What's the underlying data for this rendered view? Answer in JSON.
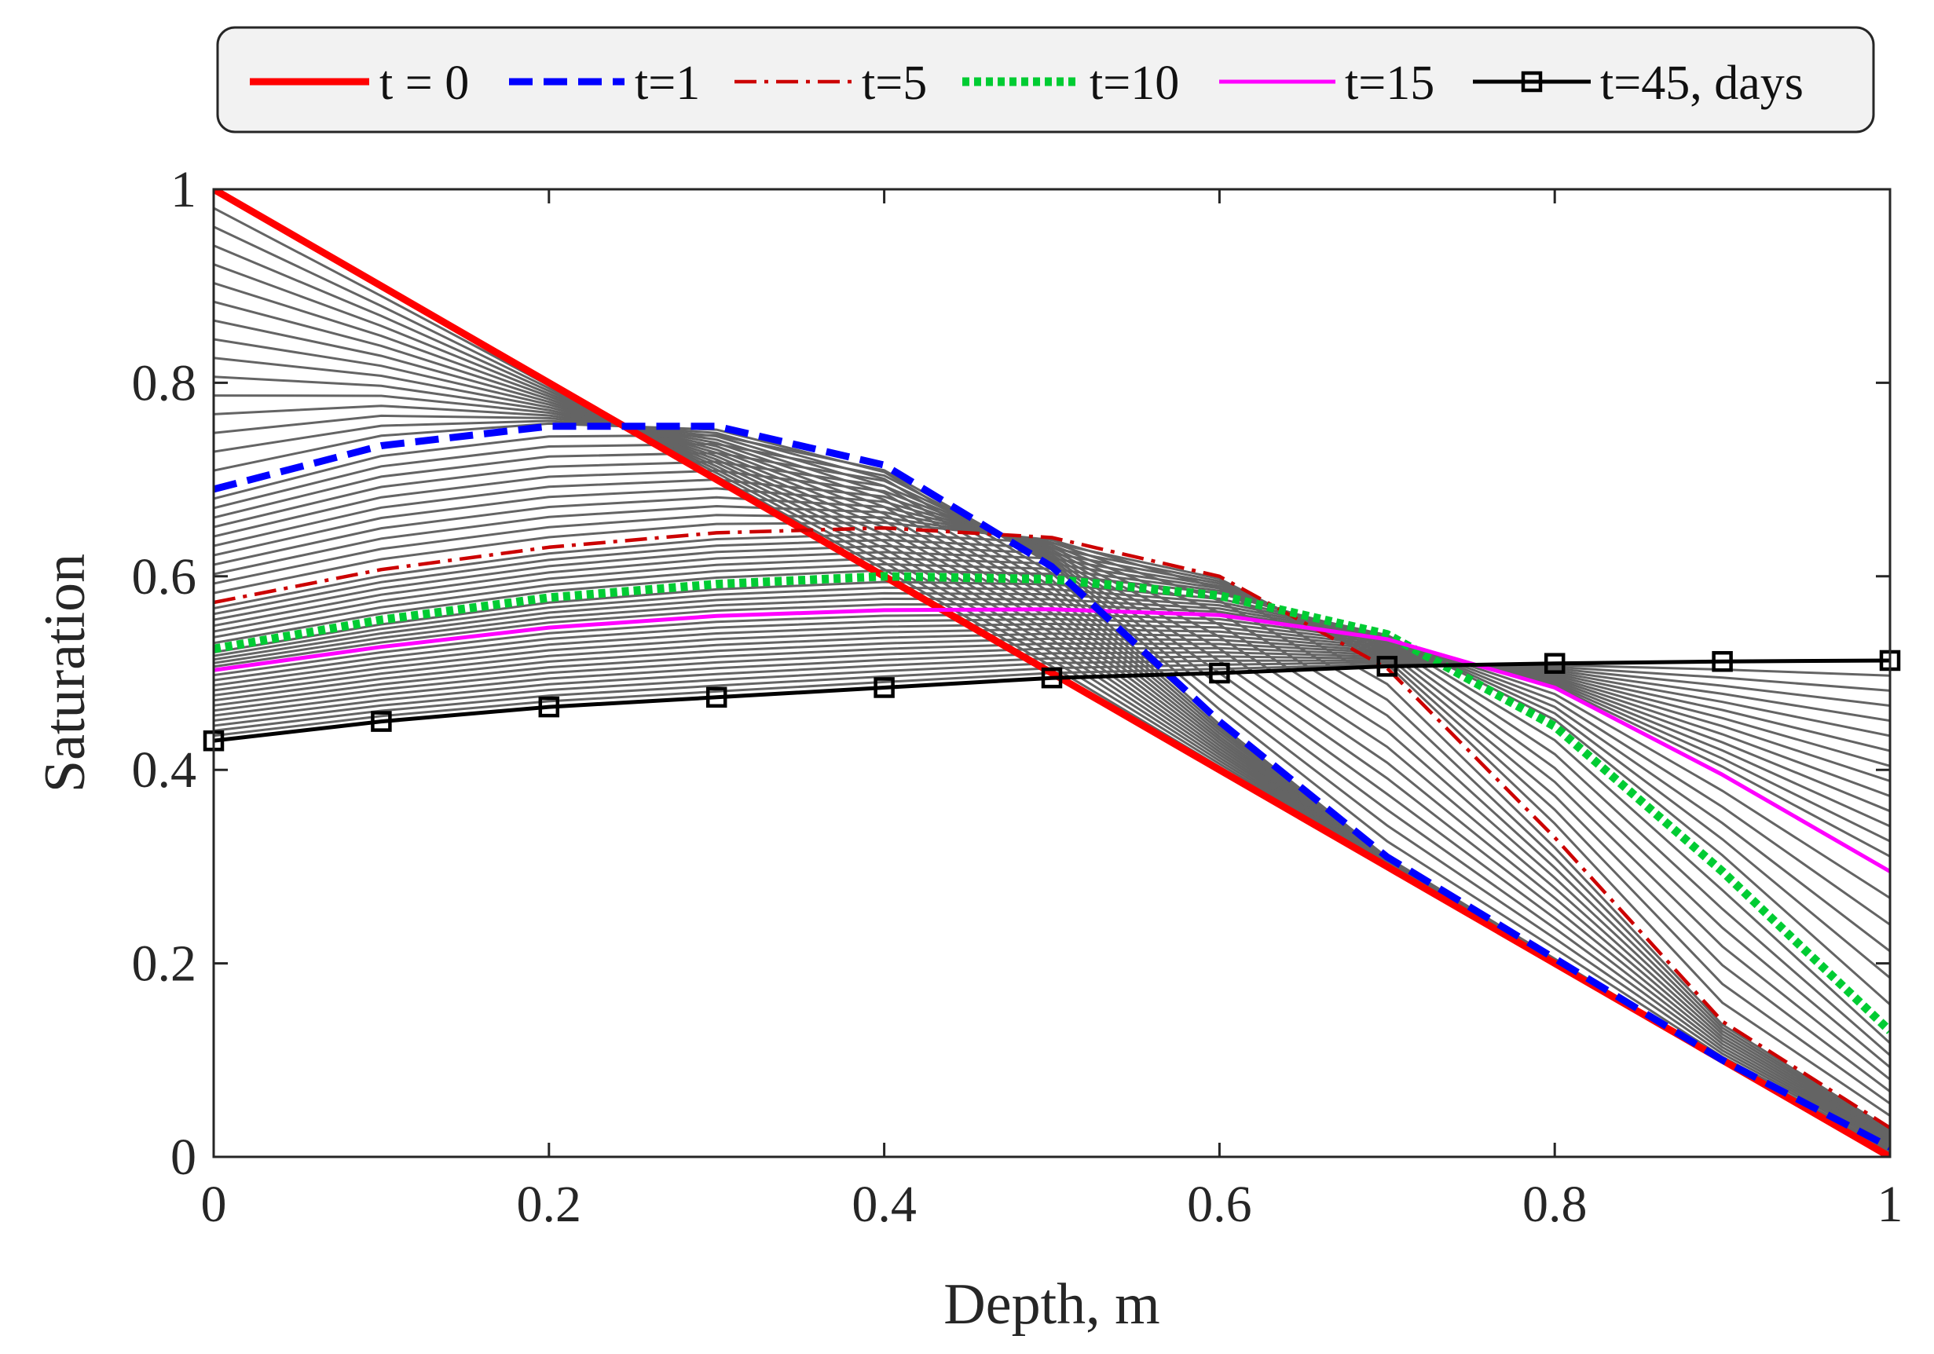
{
  "chart_data": {
    "type": "line",
    "title": "",
    "xlabel": "Depth, m",
    "ylabel": "Saturation",
    "xlim": [
      0,
      1
    ],
    "ylim": [
      0,
      1
    ],
    "grid": false,
    "legend_position": "top, outside, horizontal",
    "x": [
      0,
      0.1,
      0.2,
      0.3,
      0.4,
      0.5,
      0.6,
      0.7,
      0.8,
      0.9,
      1.0
    ],
    "xticks": [
      "0",
      "0.2",
      "0.4",
      "0.6",
      "0.8",
      "1"
    ],
    "yticks": [
      "0",
      "0.2",
      "0.4",
      "0.6",
      "0.8",
      "1"
    ],
    "series": [
      {
        "name": "t = 0",
        "color": "#ff0000",
        "style": "solid-thick",
        "values": [
          1.0,
          0.9,
          0.8,
          0.7,
          0.6,
          0.5,
          0.4,
          0.3,
          0.2,
          0.1,
          0.0
        ]
      },
      {
        "name": "t=1",
        "color": "#0000ff",
        "style": "dashed",
        "values": [
          0.69,
          0.735,
          0.755,
          0.755,
          0.715,
          0.61,
          0.45,
          0.31,
          0.205,
          0.1,
          0.01
        ]
      },
      {
        "name": "t=5",
        "color": "#cc0000",
        "style": "dashdot",
        "values": [
          0.573,
          0.607,
          0.63,
          0.645,
          0.65,
          0.64,
          0.6,
          0.505,
          0.33,
          0.14,
          0.03
        ]
      },
      {
        "name": "t=10",
        "color": "#00cc33",
        "style": "dotted",
        "values": [
          0.525,
          0.555,
          0.578,
          0.592,
          0.6,
          0.597,
          0.58,
          0.54,
          0.445,
          0.295,
          0.13
        ]
      },
      {
        "name": "t=15",
        "color": "#ff00ff",
        "style": "solid",
        "values": [
          0.503,
          0.527,
          0.547,
          0.559,
          0.565,
          0.566,
          0.56,
          0.535,
          0.485,
          0.395,
          0.295
        ]
      },
      {
        "name": "t=45, days",
        "color": "#000000",
        "style": "solid-square-markers",
        "values": [
          0.43,
          0.45,
          0.465,
          0.475,
          0.485,
          0.495,
          0.5,
          0.507,
          0.51,
          0.512,
          0.513
        ]
      }
    ],
    "background_curves": {
      "color": "#646464",
      "count": 56,
      "description": "intermediate time steps between t=0 and t=45"
    }
  }
}
